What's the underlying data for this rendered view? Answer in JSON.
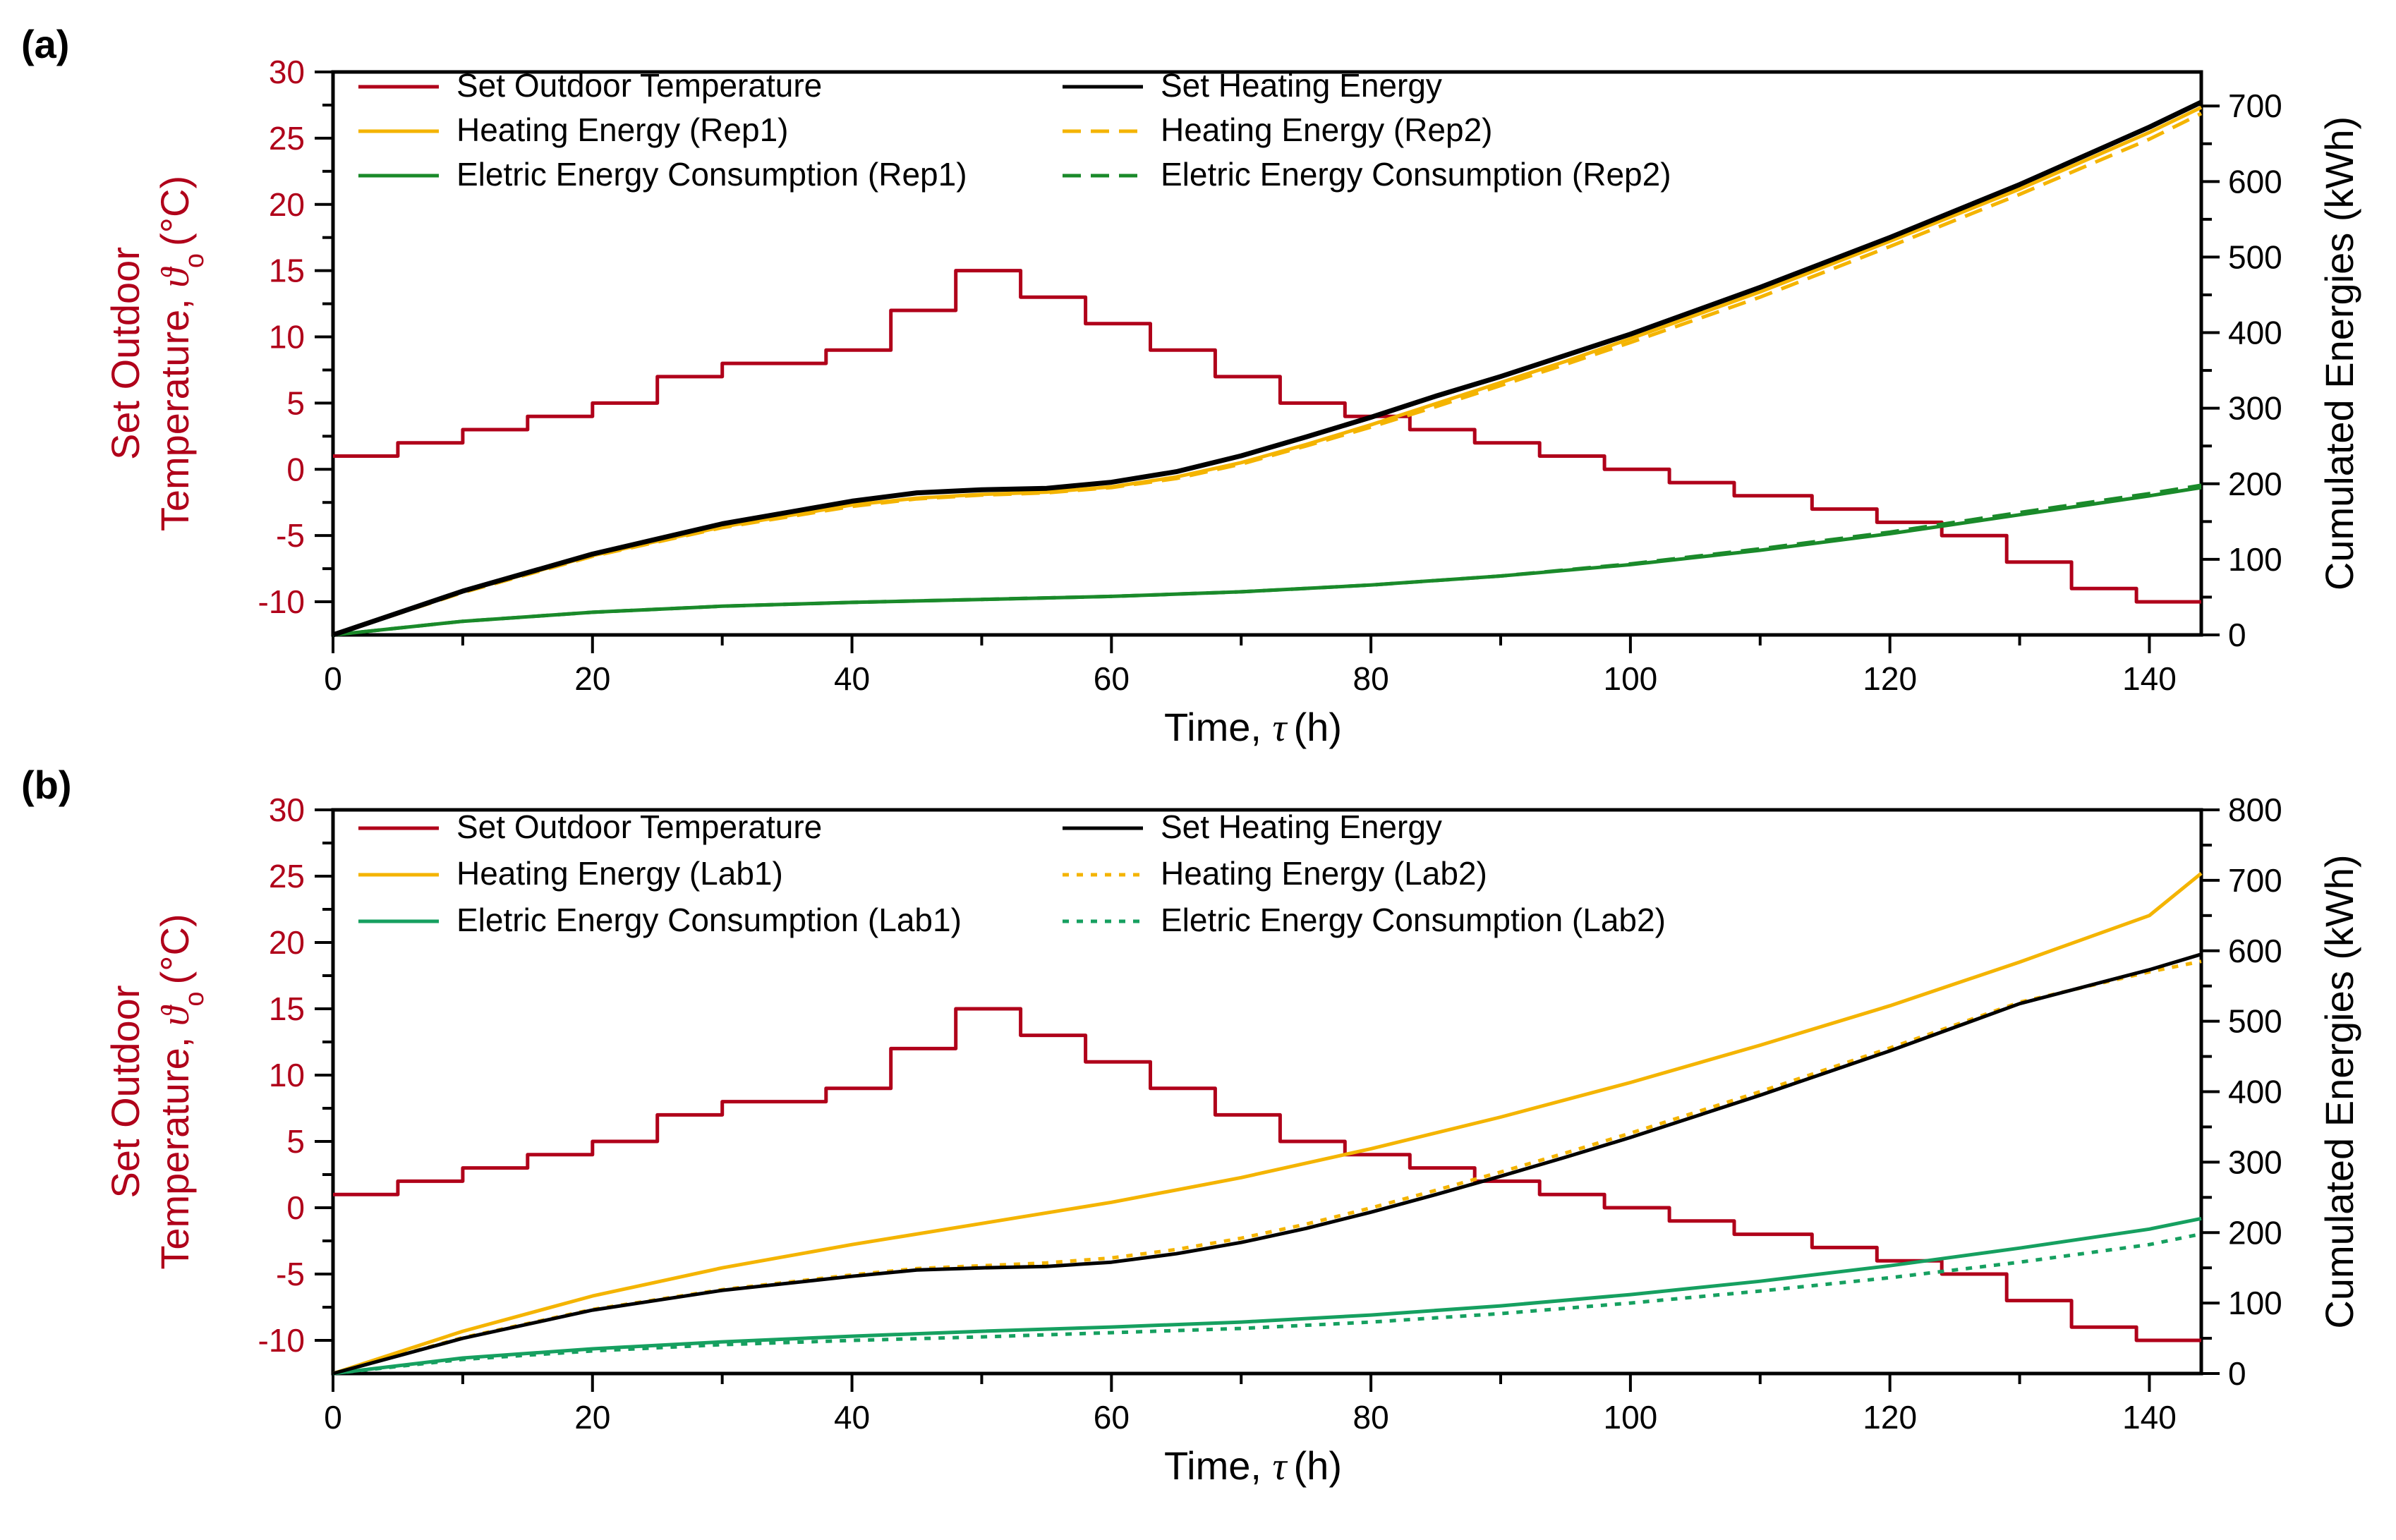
{
  "chart_data": [
    {
      "type": "line",
      "panel_label": "(a)",
      "xlabel_text": "Time,",
      "xlabel_symbol": "τ",
      "xlabel_unit": "(h)",
      "ylabel_line1": "Set Outdoor",
      "ylabel_line2_text": "Temperature,",
      "ylabel_line2_symbol": "ϑ",
      "ylabel_line2_sub": "o",
      "ylabel_line2_unit": "(°C)",
      "y2label": "Cumulated Energies (kWh)",
      "xlim": [
        0,
        144
      ],
      "ylim": [
        -12.5,
        30
      ],
      "y2lim": [
        0,
        745
      ],
      "xticks": [
        0,
        20,
        40,
        60,
        80,
        100,
        120,
        140
      ],
      "yticks": [
        -10,
        -5,
        0,
        5,
        10,
        15,
        20,
        25,
        30
      ],
      "y2ticks": [
        0,
        100,
        200,
        300,
        400,
        500,
        600,
        700
      ],
      "temperature": {
        "name": "Set Outdoor Temperature",
        "color": "#b0001a",
        "step_edges": [
          0,
          5,
          10,
          15,
          20,
          25,
          30,
          38,
          43,
          48,
          53,
          58,
          63,
          68,
          73,
          78,
          83,
          88,
          93,
          98,
          103,
          108,
          114,
          119,
          124,
          129,
          134,
          139,
          144
        ],
        "values": [
          1,
          2,
          3,
          4,
          5,
          7,
          8,
          9,
          12,
          15,
          13,
          11,
          9,
          7,
          5,
          4,
          3,
          2,
          1,
          0,
          -1,
          -2,
          -3,
          -4,
          -5,
          -7,
          -9,
          -10
        ]
      },
      "energy_series": [
        {
          "name": "Set Heating Energy",
          "color": "#000000",
          "dash": "solid",
          "width": 7,
          "x": [
            0,
            10,
            20,
            30,
            40,
            45,
            50,
            55,
            60,
            65,
            70,
            75,
            80,
            85,
            90,
            95,
            100,
            110,
            120,
            130,
            140,
            144
          ],
          "y": [
            0,
            58,
            107,
            147,
            177,
            188,
            192,
            194,
            202,
            216,
            237,
            262,
            288,
            316,
            342,
            370,
            398,
            460,
            526,
            596,
            672,
            705
          ]
        },
        {
          "name": "Heating Energy (Rep1)",
          "color": "#f4b400",
          "dash": "solid",
          "width": 5,
          "x": [
            0,
            10,
            20,
            30,
            40,
            45,
            50,
            55,
            60,
            65,
            70,
            75,
            80,
            85,
            90,
            95,
            100,
            110,
            120,
            130,
            140,
            144
          ],
          "y": [
            0,
            57,
            105,
            143,
            172,
            181,
            186,
            189,
            196,
            209,
            228,
            252,
            278,
            306,
            334,
            362,
            392,
            454,
            521,
            590,
            665,
            698
          ]
        },
        {
          "name": "Heating Energy (Rep2)",
          "color": "#f4b400",
          "dash": "dashed",
          "width": 5,
          "x": [
            0,
            10,
            20,
            30,
            40,
            45,
            50,
            55,
            60,
            65,
            70,
            75,
            80,
            85,
            90,
            95,
            100,
            110,
            120,
            130,
            140,
            144
          ],
          "y": [
            0,
            56,
            104,
            142,
            170,
            180,
            185,
            188,
            195,
            207,
            226,
            250,
            275,
            302,
            330,
            358,
            387,
            447,
            514,
            583,
            656,
            690
          ]
        },
        {
          "name": "Eletric Energy Consumption (Rep1)",
          "color": "#1a8a2a",
          "dash": "solid",
          "width": 5,
          "x": [
            0,
            10,
            20,
            30,
            40,
            50,
            60,
            70,
            80,
            90,
            100,
            110,
            120,
            130,
            140,
            144
          ],
          "y": [
            0,
            18,
            30,
            38,
            43,
            47,
            51,
            57,
            66,
            78,
            93,
            112,
            134,
            159,
            184,
            195
          ]
        },
        {
          "name": "Eletric Energy Consumption (Rep2)",
          "color": "#1a8a2a",
          "dash": "dashed",
          "width": 5,
          "x": [
            0,
            10,
            20,
            30,
            40,
            50,
            60,
            70,
            80,
            90,
            100,
            110,
            120,
            130,
            140,
            144
          ],
          "y": [
            0,
            18,
            30,
            38,
            43,
            47,
            51,
            57,
            66,
            78,
            94,
            114,
            136,
            162,
            187,
            198
          ]
        }
      ],
      "legend": [
        {
          "label": "Set Outdoor Temperature",
          "color": "#b0001a",
          "dash": "solid"
        },
        {
          "label": "Set Heating Energy",
          "color": "#000000",
          "dash": "solid"
        },
        {
          "label": "Heating Energy (Rep1)",
          "color": "#f4b400",
          "dash": "solid"
        },
        {
          "label": "Heating Energy (Rep2)",
          "color": "#f4b400",
          "dash": "dashed"
        },
        {
          "label": "Eletric Energy Consumption (Rep1)",
          "color": "#1a8a2a",
          "dash": "solid"
        },
        {
          "label": "Eletric Energy Consumption (Rep2)",
          "color": "#1a8a2a",
          "dash": "dashed"
        }
      ]
    },
    {
      "type": "line",
      "panel_label": "(b)",
      "xlabel_text": "Time,",
      "xlabel_symbol": "τ",
      "xlabel_unit": "(h)",
      "ylabel_line1": "Set Outdoor",
      "ylabel_line2_text": "Temperature,",
      "ylabel_line2_symbol": "ϑ",
      "ylabel_line2_sub": "o",
      "ylabel_line2_unit": "(°C)",
      "y2label": "Cumulated Energies (kWh)",
      "xlim": [
        0,
        144
      ],
      "ylim": [
        -12.5,
        30
      ],
      "y2lim": [
        0,
        800
      ],
      "xticks": [
        0,
        20,
        40,
        60,
        80,
        100,
        120,
        140
      ],
      "yticks": [
        -10,
        -5,
        0,
        5,
        10,
        15,
        20,
        25,
        30
      ],
      "y2ticks": [
        0,
        100,
        200,
        300,
        400,
        500,
        600,
        700,
        800
      ],
      "temperature": {
        "name": "Set Outdoor Temperature",
        "color": "#b0001a",
        "step_edges": [
          0,
          5,
          10,
          15,
          20,
          25,
          30,
          38,
          43,
          48,
          53,
          58,
          63,
          68,
          73,
          78,
          83,
          88,
          93,
          98,
          103,
          108,
          114,
          119,
          124,
          129,
          134,
          139,
          144
        ],
        "values": [
          1,
          2,
          3,
          4,
          5,
          7,
          8,
          9,
          12,
          15,
          13,
          11,
          9,
          7,
          5,
          4,
          3,
          2,
          1,
          0,
          -1,
          -2,
          -3,
          -4,
          -5,
          -7,
          -9,
          -10
        ]
      },
      "energy_series": [
        {
          "name": "Set Heating Energy",
          "color": "#000000",
          "dash": "solid",
          "width": 5,
          "x": [
            0,
            10,
            20,
            30,
            40,
            45,
            50,
            55,
            60,
            65,
            70,
            75,
            80,
            85,
            90,
            95,
            100,
            110,
            120,
            130,
            140,
            144
          ],
          "y": [
            0,
            50,
            90,
            118,
            138,
            147,
            150,
            152,
            158,
            170,
            186,
            206,
            229,
            254,
            280,
            307,
            335,
            395,
            458,
            525,
            573,
            595
          ]
        },
        {
          "name": "Heating Energy (Lab1)",
          "color": "#f4b400",
          "dash": "solid",
          "width": 5,
          "x": [
            0,
            10,
            20,
            30,
            40,
            50,
            60,
            70,
            80,
            90,
            100,
            110,
            120,
            130,
            140,
            144
          ],
          "y": [
            0,
            60,
            110,
            150,
            183,
            213,
            243,
            278,
            319,
            364,
            413,
            466,
            522,
            584,
            650,
            710
          ]
        },
        {
          "name": "Heating Energy (Lab2)",
          "color": "#f4b400",
          "dash": "dotted",
          "width": 5,
          "x": [
            0,
            10,
            20,
            30,
            40,
            45,
            50,
            55,
            60,
            65,
            70,
            75,
            80,
            85,
            90,
            95,
            100,
            110,
            120,
            130,
            140,
            144
          ],
          "y": [
            0,
            51,
            91,
            119,
            140,
            149,
            153,
            157,
            164,
            176,
            192,
            212,
            235,
            260,
            286,
            313,
            341,
            400,
            462,
            527,
            570,
            585
          ]
        },
        {
          "name": "Eletric Energy Consumption (Lab1)",
          "color": "#16a060",
          "dash": "solid",
          "width": 5,
          "x": [
            0,
            10,
            20,
            30,
            40,
            50,
            60,
            70,
            80,
            90,
            100,
            110,
            120,
            130,
            140,
            144
          ],
          "y": [
            0,
            22,
            35,
            45,
            53,
            60,
            66,
            73,
            83,
            96,
            112,
            131,
            153,
            178,
            205,
            220
          ]
        },
        {
          "name": "Eletric Energy Consumption (Lab2)",
          "color": "#16a060",
          "dash": "dotted",
          "width": 5,
          "x": [
            0,
            10,
            20,
            30,
            40,
            50,
            60,
            70,
            80,
            90,
            100,
            110,
            120,
            130,
            140,
            144
          ],
          "y": [
            0,
            20,
            32,
            41,
            47,
            52,
            58,
            64,
            73,
            85,
            100,
            117,
            136,
            158,
            183,
            198
          ]
        }
      ],
      "legend": [
        {
          "label": "Set Outdoor Temperature",
          "color": "#b0001a",
          "dash": "solid"
        },
        {
          "label": "Set Heating Energy",
          "color": "#000000",
          "dash": "solid"
        },
        {
          "label": "Heating Energy (Lab1)",
          "color": "#f4b400",
          "dash": "solid"
        },
        {
          "label": "Heating Energy (Lab2)",
          "color": "#f4b400",
          "dash": "dotted"
        },
        {
          "label": "Eletric Energy Consumption (Lab1)",
          "color": "#16a060",
          "dash": "solid"
        },
        {
          "label": "Eletric Energy Consumption (Lab2)",
          "color": "#16a060",
          "dash": "dotted"
        }
      ]
    }
  ]
}
